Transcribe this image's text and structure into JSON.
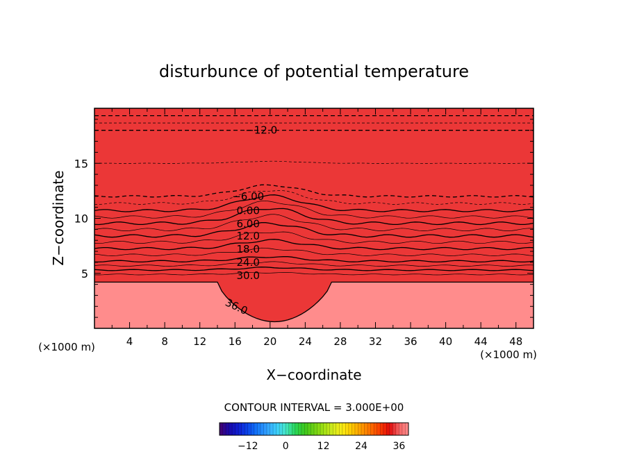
{
  "chart_data": {
    "type": "contour",
    "title": "disturbunce of potential temperature",
    "xlabel": "X−coordinate",
    "ylabel": "Z−coordinate",
    "x_unit_left": "(×1000 m)",
    "x_unit_right": "(×1000 m)",
    "xlim": [
      0,
      50
    ],
    "ylim": [
      0,
      20
    ],
    "x_ticks": [
      4,
      8,
      12,
      16,
      20,
      24,
      28,
      32,
      36,
      40,
      44,
      48
    ],
    "x_tick_labels": [
      "4",
      "8",
      "12",
      "16",
      "20",
      "24",
      "28",
      "32",
      "36",
      "40",
      "44",
      "48"
    ],
    "y_ticks": [
      5,
      10,
      15
    ],
    "y_tick_labels": [
      "5",
      "10",
      "15"
    ],
    "contour_interval_text": "CONTOUR INTERVAL = 3.000E+00",
    "contour_interval": 3.0,
    "value_range": [
      -21,
      39
    ],
    "contour_labels": [
      {
        "text": "−12.0",
        "x": 19.0,
        "z": 18.0
      },
      {
        "text": "−6.00",
        "x": 17.5,
        "z": 12.0
      },
      {
        "text": "0.00",
        "x": 17.5,
        "z": 10.7
      },
      {
        "text": "6.00",
        "x": 17.5,
        "z": 9.5
      },
      {
        "text": "12.0",
        "x": 17.5,
        "z": 8.4
      },
      {
        "text": "18.0",
        "x": 17.5,
        "z": 7.2
      },
      {
        "text": "24.0",
        "x": 17.5,
        "z": 6.0
      },
      {
        "text": "30.0",
        "x": 17.5,
        "z": 4.8
      },
      {
        "text": "36.0",
        "x": 16.0,
        "z": 2.0
      }
    ],
    "field_description": "Horizontally layered field decreasing upward from about 39 near the surface to about -21 at 20 km, with a warm dome centred near x = 20 km",
    "colorbar": {
      "ticks": [
        -12,
        0,
        12,
        24,
        36
      ],
      "tick_labels": [
        "−12",
        "0",
        "12",
        "24",
        "36"
      ],
      "range": [
        -21,
        39
      ]
    }
  }
}
